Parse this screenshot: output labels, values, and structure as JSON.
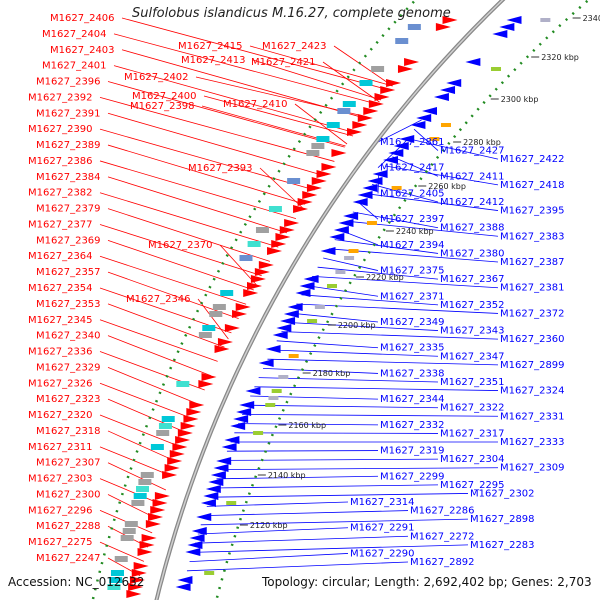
{
  "title": "Sulfolobus islandicus M.16.27, complete genome",
  "accession": "Accession: NC_012632",
  "topology": "Topology: circular; Length: 2,692,402 bp; Genes: 2,703",
  "colors": {
    "forward": "#ff0000",
    "reverse": "#0000ff",
    "backbone": "#999999",
    "gc": "#228b22"
  },
  "ticks": [
    "2340 kbp",
    "2320 kbp",
    "2300 kbp",
    "2280 kbp",
    "2260 kbp",
    "2240 kbp",
    "2220 kbp",
    "2200 kbp",
    "2180 kbp",
    "2160 kbp",
    "2140 kbp",
    "2120 kbp"
  ],
  "left_labels": [
    "M1627_2406",
    "M1627_2404",
    "M1627_2403",
    "M1627_2401",
    "M1627_2396",
    "M1627_2392",
    "M1627_2391",
    "M1627_2390",
    "M1627_2389",
    "M1627_2386",
    "M1627_2384",
    "M1627_2382",
    "M1627_2379",
    "M1627_2377",
    "M1627_2369",
    "M1627_2364",
    "M1627_2357",
    "M1627_2354",
    "M1627_2353",
    "M1627_2345",
    "M1627_2340",
    "M1627_2336",
    "M1627_2329",
    "M1627_2326",
    "M1627_2323",
    "M1627_2320",
    "M1627_2318",
    "M1627_2311",
    "M1627_2307",
    "M1627_2303",
    "M1627_2300",
    "M1627_2296",
    "M1627_2288",
    "M1627_2275",
    "M1627_2247"
  ],
  "mid_labels": [
    "M1627_2415",
    "M1627_2413",
    "M1627_2402",
    "M1627_2400",
    "M1627_2398",
    "M1627_2393",
    "M1627_2370",
    "M1627_2346",
    "M1627_2423",
    "M1627_2421",
    "M1627_2410"
  ],
  "right_labels": [
    "M1627_2861",
    "M1627_2427",
    "M1627_2422",
    "M1627_2417",
    "M1627_2411",
    "M1627_2418",
    "M1627_2405",
    "M1627_2412",
    "M1627_2395",
    "M1627_2397",
    "M1627_2388",
    "M1627_2383",
    "M1627_2394",
    "M1627_2380",
    "M1627_2387",
    "M1627_2375",
    "M1627_2367",
    "M1627_2381",
    "M1627_2371",
    "M1627_2352",
    "M1627_2372",
    "M1627_2349",
    "M1627_2343",
    "M1627_2360",
    "M1627_2335",
    "M1627_2347",
    "M1627_2899",
    "M1627_2338",
    "M1627_2351",
    "M1627_2324",
    "M1627_2344",
    "M1627_2322",
    "M1627_2331",
    "M1627_2332",
    "M1627_2317",
    "M1627_2333",
    "M1627_2319",
    "M1627_2304",
    "M1627_2309",
    "M1627_2299",
    "M1627_2295",
    "M1627_2302",
    "M1627_2314",
    "M1627_2286",
    "M1627_2898",
    "M1627_2291",
    "M1627_2272",
    "M1627_2283",
    "M1627_2290",
    "M1627_2892"
  ]
}
